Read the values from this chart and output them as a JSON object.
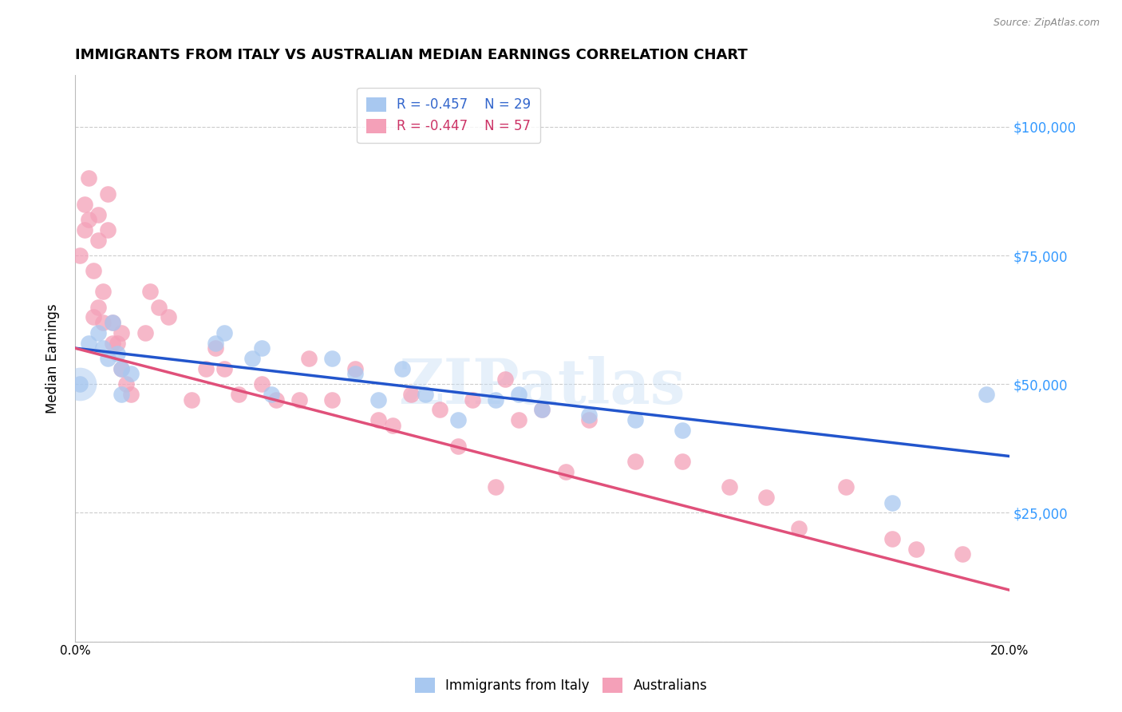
{
  "title": "IMMIGRANTS FROM ITALY VS AUSTRALIAN MEDIAN EARNINGS CORRELATION CHART",
  "source": "Source: ZipAtlas.com",
  "ylabel": "Median Earnings",
  "y_ticks": [
    0,
    25000,
    50000,
    75000,
    100000
  ],
  "y_tick_labels": [
    "",
    "$25,000",
    "$50,000",
    "$75,000",
    "$100,000"
  ],
  "x_range": [
    0.0,
    0.2
  ],
  "y_range": [
    0,
    110000
  ],
  "legend_italy": "R = -0.457    N = 29",
  "legend_aus": "R = -0.447    N = 57",
  "legend_label_italy": "Immigrants from Italy",
  "legend_label_aus": "Australians",
  "italy_color": "#a8c8f0",
  "aus_color": "#f4a0b8",
  "italy_line_color": "#2255cc",
  "aus_line_color": "#e0507a",
  "watermark": "ZIPatlas",
  "italy_line_x0": 0.0,
  "italy_line_y0": 57000,
  "italy_line_x1": 0.2,
  "italy_line_y1": 36000,
  "aus_line_x0": 0.0,
  "aus_line_y0": 57000,
  "aus_line_x1": 0.2,
  "aus_line_y1": 10000,
  "italy_x": [
    0.001,
    0.003,
    0.005,
    0.006,
    0.007,
    0.008,
    0.009,
    0.01,
    0.01,
    0.012,
    0.03,
    0.032,
    0.038,
    0.04,
    0.042,
    0.055,
    0.06,
    0.065,
    0.07,
    0.075,
    0.082,
    0.09,
    0.095,
    0.1,
    0.11,
    0.12,
    0.13,
    0.175,
    0.195
  ],
  "italy_y": [
    50000,
    58000,
    60000,
    57000,
    55000,
    62000,
    56000,
    53000,
    48000,
    52000,
    58000,
    60000,
    55000,
    57000,
    48000,
    55000,
    52000,
    47000,
    53000,
    48000,
    43000,
    47000,
    48000,
    45000,
    44000,
    43000,
    41000,
    27000,
    48000
  ],
  "aus_x": [
    0.001,
    0.002,
    0.002,
    0.003,
    0.003,
    0.004,
    0.004,
    0.005,
    0.005,
    0.005,
    0.006,
    0.006,
    0.007,
    0.007,
    0.008,
    0.008,
    0.009,
    0.01,
    0.01,
    0.011,
    0.012,
    0.015,
    0.016,
    0.018,
    0.02,
    0.025,
    0.028,
    0.03,
    0.032,
    0.035,
    0.04,
    0.043,
    0.048,
    0.05,
    0.055,
    0.06,
    0.065,
    0.068,
    0.072,
    0.078,
    0.082,
    0.085,
    0.09,
    0.092,
    0.095,
    0.1,
    0.105,
    0.11,
    0.12,
    0.13,
    0.14,
    0.148,
    0.155,
    0.165,
    0.175,
    0.18,
    0.19
  ],
  "aus_y": [
    75000,
    85000,
    80000,
    90000,
    82000,
    63000,
    72000,
    83000,
    78000,
    65000,
    62000,
    68000,
    87000,
    80000,
    62000,
    58000,
    58000,
    60000,
    53000,
    50000,
    48000,
    60000,
    68000,
    65000,
    63000,
    47000,
    53000,
    57000,
    53000,
    48000,
    50000,
    47000,
    47000,
    55000,
    47000,
    53000,
    43000,
    42000,
    48000,
    45000,
    38000,
    47000,
    30000,
    51000,
    43000,
    45000,
    33000,
    43000,
    35000,
    35000,
    30000,
    28000,
    22000,
    30000,
    20000,
    18000,
    17000
  ]
}
